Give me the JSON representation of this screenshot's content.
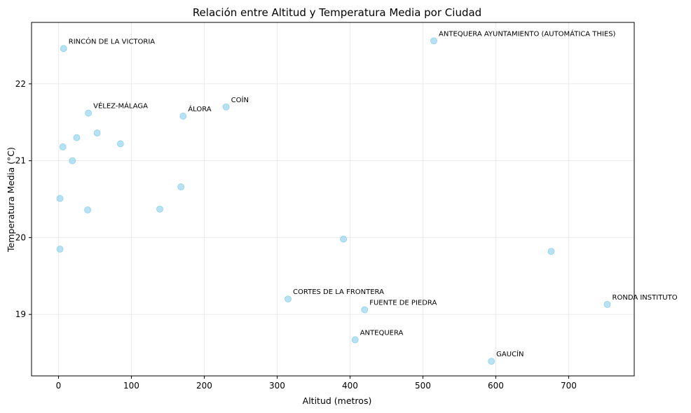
{
  "chart_data": {
    "type": "scatter",
    "title": "Relación entre Altitud y Temperatura Media por Ciudad",
    "xlabel": "Altitud (metros)",
    "ylabel": "Temperatura Media (°C)",
    "xlim": [
      -37,
      790
    ],
    "ylim": [
      18.2,
      22.8
    ],
    "xticks": [
      0,
      100,
      200,
      300,
      400,
      500,
      600,
      700
    ],
    "yticks": [
      19,
      20,
      21,
      22
    ],
    "grid": true,
    "color": "#87ceeb",
    "points": [
      {
        "x": 7,
        "y": 22.46,
        "label": "RINCÓN DE LA VICTORIA"
      },
      {
        "x": 515,
        "y": 22.56,
        "label": "ANTEQUERA AYUNTAMIENTO (AUTOMÁTICA THIES)"
      },
      {
        "x": 41,
        "y": 21.62,
        "label": "VÉLEZ-MÁLAGA"
      },
      {
        "x": 171,
        "y": 21.58,
        "label": "ÁLORA"
      },
      {
        "x": 230,
        "y": 21.7,
        "label": "COÍN"
      },
      {
        "x": 315,
        "y": 19.2,
        "label": "CORTES DE LA FRONTERA"
      },
      {
        "x": 420,
        "y": 19.06,
        "label": "FUENTE DE PIEDRA"
      },
      {
        "x": 753,
        "y": 19.13,
        "label": "RONDA INSTITUTO"
      },
      {
        "x": 407,
        "y": 18.67,
        "label": "ANTEQUERA"
      },
      {
        "x": 594,
        "y": 18.39,
        "label": "GAUCÍN"
      },
      {
        "x": 53,
        "y": 21.36
      },
      {
        "x": 25,
        "y": 21.3
      },
      {
        "x": 85,
        "y": 21.22
      },
      {
        "x": 6,
        "y": 21.18
      },
      {
        "x": 19,
        "y": 21.0
      },
      {
        "x": 168,
        "y": 20.66
      },
      {
        "x": 2,
        "y": 20.51
      },
      {
        "x": 40,
        "y": 20.36
      },
      {
        "x": 139,
        "y": 20.37
      },
      {
        "x": 2,
        "y": 19.85
      },
      {
        "x": 391,
        "y": 19.98
      },
      {
        "x": 676,
        "y": 19.82
      }
    ]
  }
}
